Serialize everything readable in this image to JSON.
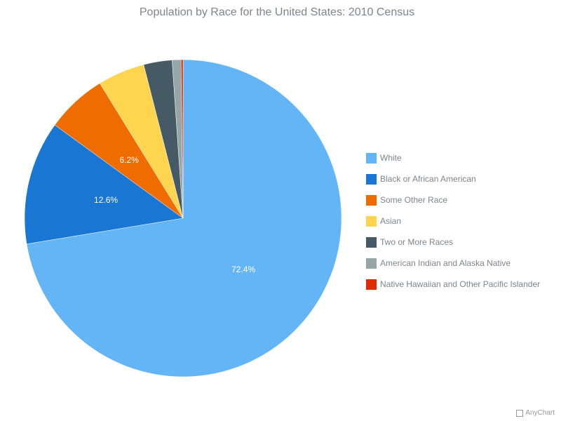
{
  "chart_data": {
    "type": "pie",
    "title": "Population by Race for the United States: 2010 Census",
    "categories": [
      "White",
      "Black or African American",
      "Some Other Race",
      "Asian",
      "Two or More Races",
      "American Indian and Alaska Native",
      "Native Hawaiian and Other Pacific Islander"
    ],
    "values": [
      72.4,
      12.6,
      6.2,
      4.8,
      2.9,
      0.9,
      0.2
    ],
    "unit": "%",
    "data_labels": [
      "72.4%",
      "12.6%",
      "6.2%",
      "",
      "",
      "",
      ""
    ],
    "colors": [
      "#64b5f6",
      "#1976d2",
      "#ef6c00",
      "#ffd54f",
      "#455a64",
      "#96a6a6",
      "#dd2c00"
    ],
    "start_angle": 0,
    "direction": "clockwise",
    "legend_position": "right"
  },
  "credit": "AnyChart"
}
